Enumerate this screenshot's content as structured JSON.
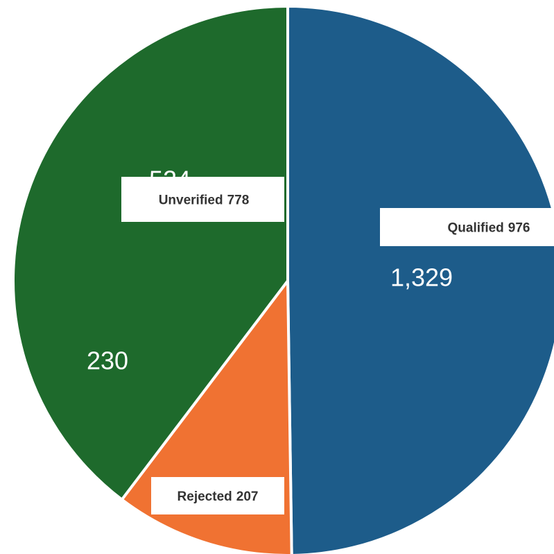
{
  "chart_data": {
    "type": "pie",
    "categories": [
      "Qualified",
      "Rejected",
      "Unverified"
    ],
    "values": [
      976,
      207,
      778
    ],
    "colors": [
      "#1d5c8a",
      "#f07232",
      "#1e6a2c"
    ],
    "annotations": [
      "524",
      "1,329",
      "230"
    ]
  }
}
